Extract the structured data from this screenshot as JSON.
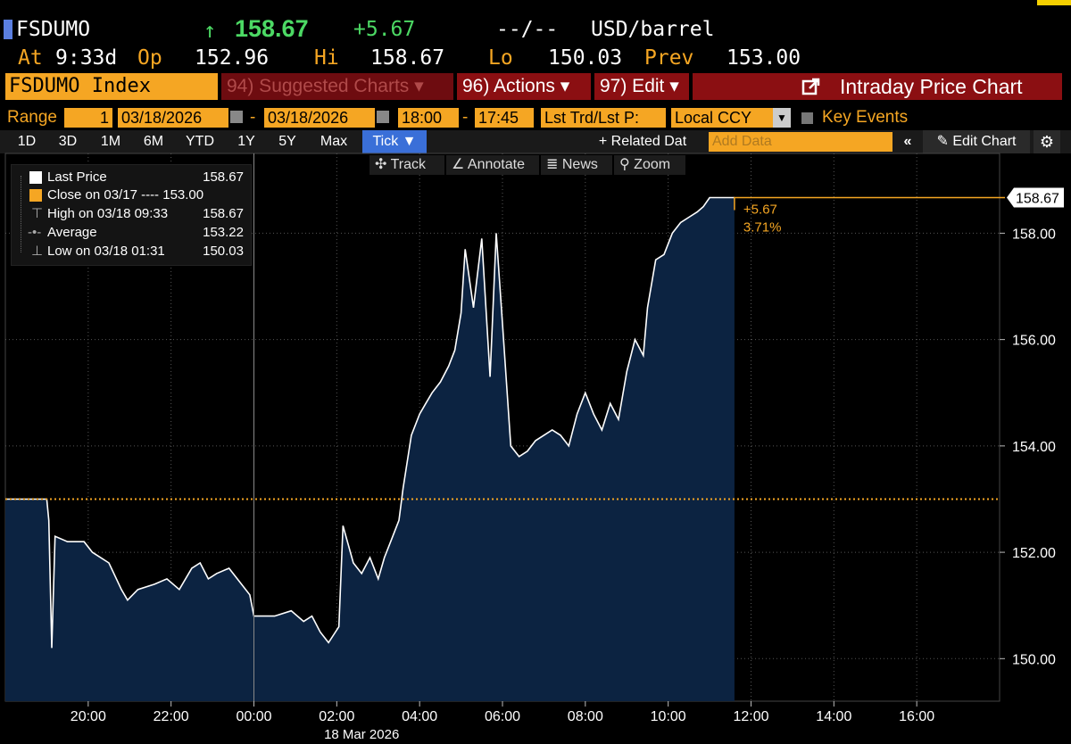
{
  "header": {
    "ticker": "FSDUMO",
    "arrow": "↑",
    "last": "158.67",
    "change": "+5.67",
    "dashes": "--/--",
    "unit": "USD/barrel",
    "at_label": "At",
    "at_time": "9:33d",
    "op_label": "Op",
    "op_value": "152.96",
    "hi_label": "Hi",
    "hi_value": "158.67",
    "lo_label": "Lo",
    "lo_value": "150.03",
    "prev_label": "Prev",
    "prev_value": "153.00"
  },
  "menubar": {
    "security": "FSDUMO Index",
    "suggested": "94) Suggested Charts ▾",
    "actions": "96) Actions ▾",
    "edit": "97) Edit ▾",
    "title_icon": "external-link-icon",
    "title": "Intraday Price Chart"
  },
  "rangebar": {
    "range_label": "Range",
    "range_num": "1",
    "start_date": "03/18/2026",
    "end_date": "03/18/2026",
    "start_time": "18:00",
    "end_time": "17:45",
    "lst_trd": "Lst Trd/Lst P:",
    "ccy": "Local CCY",
    "key_events": "Key Events"
  },
  "tabs": {
    "items": [
      "1D",
      "3D",
      "1M",
      "6M",
      "YTD",
      "1Y",
      "5Y",
      "Max",
      "Tick ▼"
    ],
    "related": "+ Related Dat",
    "add_data_placeholder": "Add Data",
    "edit_chart": "Edit Chart"
  },
  "toolbar2": {
    "track": "Track",
    "annotate": "Annotate",
    "news": "News",
    "zoom": "Zoom"
  },
  "legend": {
    "items": [
      {
        "label": "Last Price",
        "value": "158.67"
      },
      {
        "label": "Close on 03/17 ---- 153.00",
        "value": ""
      },
      {
        "label": "High on 03/18 09:33",
        "value": "158.67"
      },
      {
        "label": "Average",
        "value": "153.22"
      },
      {
        "label": "Low on 03/18 01:31",
        "value": "150.03"
      }
    ]
  },
  "colors": {
    "amber": "#f5a623",
    "area_fill": "#0c2341",
    "line": "#ffffff",
    "prev_close_line": "#f5a623",
    "tab_active": "#3a6fd8"
  },
  "chart_data": {
    "type": "line",
    "title": "",
    "x_ticks": [
      "20:00",
      "22:00",
      "00:00",
      "02:00",
      "04:00",
      "06:00",
      "08:00",
      "10:00",
      "12:00",
      "14:00",
      "16:00"
    ],
    "date_label": "18 Mar 2026",
    "y_ticks": [
      "150.00",
      "152.00",
      "154.00",
      "156.00",
      "158.00"
    ],
    "ylim": [
      149.2,
      159.5
    ],
    "x_range_hours": [
      18.0,
      42.0
    ],
    "prev_close": 153.0,
    "last_price_tag": "158.67",
    "change_annotation": "+5.67",
    "pct_annotation": "3.71%",
    "series": [
      {
        "x": [
          18.0,
          19.0,
          19.05,
          19.12,
          19.2,
          19.5,
          19.9,
          20.1,
          20.5,
          20.8,
          20.95,
          21.2,
          21.6,
          21.9,
          22.2,
          22.5,
          22.7,
          22.9,
          23.1,
          23.4,
          23.6,
          23.9,
          24.0,
          24.5,
          24.9,
          25.2,
          25.4,
          25.6,
          25.8,
          26.05,
          26.15,
          26.4,
          26.6,
          26.8,
          27.0,
          27.15,
          27.3,
          27.5,
          27.6,
          27.8,
          28.0,
          28.15,
          28.3,
          28.5,
          28.7,
          28.85,
          29.0,
          29.1,
          29.3,
          29.5,
          29.7,
          29.85,
          30.0,
          30.2,
          30.4,
          30.6,
          30.8,
          31.0,
          31.2,
          31.4,
          31.6,
          31.8,
          32.0,
          32.2,
          32.4,
          32.6,
          32.8,
          33.0,
          33.2,
          33.4,
          33.5,
          33.7,
          33.9,
          34.1,
          34.3,
          34.5,
          34.7,
          34.85,
          35.0,
          35.1,
          35.3,
          35.5,
          35.6
        ],
        "y": [
          153.0,
          153.0,
          152.6,
          150.2,
          152.3,
          152.2,
          152.2,
          152.0,
          151.8,
          151.3,
          151.1,
          151.3,
          151.4,
          151.5,
          151.3,
          151.7,
          151.8,
          151.5,
          151.6,
          151.7,
          151.5,
          151.2,
          150.8,
          150.8,
          150.9,
          150.7,
          150.8,
          150.5,
          150.3,
          150.6,
          152.5,
          151.8,
          151.6,
          151.9,
          151.5,
          151.9,
          152.2,
          152.6,
          153.2,
          154.2,
          154.6,
          154.8,
          155.0,
          155.2,
          155.5,
          155.8,
          156.5,
          157.7,
          156.6,
          157.9,
          155.3,
          158.0,
          156.3,
          154.0,
          153.8,
          153.9,
          154.1,
          154.2,
          154.3,
          154.2,
          154.0,
          154.6,
          155.0,
          154.6,
          154.3,
          154.8,
          154.5,
          155.4,
          156.0,
          155.7,
          156.6,
          157.5,
          157.6,
          158.0,
          158.2,
          158.3,
          158.4,
          158.5,
          158.67,
          158.67,
          158.67,
          158.67,
          158.67
        ]
      }
    ]
  }
}
